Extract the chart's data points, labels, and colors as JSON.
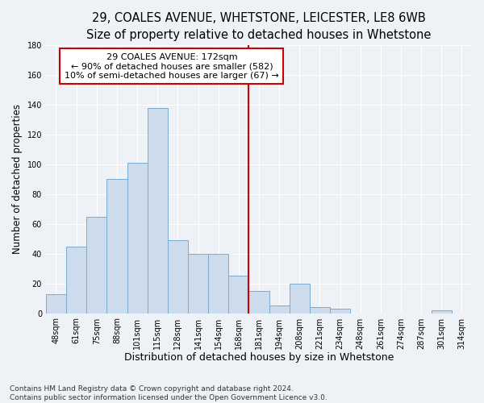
{
  "title": "29, COALES AVENUE, WHETSTONE, LEICESTER, LE8 6WB",
  "subtitle": "Size of property relative to detached houses in Whetstone",
  "xlabel": "Distribution of detached houses by size in Whetstone",
  "ylabel": "Number of detached properties",
  "bar_labels": [
    "48sqm",
    "61sqm",
    "75sqm",
    "88sqm",
    "101sqm",
    "115sqm",
    "128sqm",
    "141sqm",
    "154sqm",
    "168sqm",
    "181sqm",
    "194sqm",
    "208sqm",
    "221sqm",
    "234sqm",
    "248sqm",
    "261sqm",
    "274sqm",
    "287sqm",
    "301sqm",
    "314sqm"
  ],
  "bar_values": [
    13,
    45,
    65,
    90,
    101,
    138,
    49,
    40,
    40,
    25,
    15,
    5,
    20,
    4,
    3,
    0,
    0,
    0,
    0,
    2,
    0
  ],
  "bar_color": "#ccdcec",
  "bar_edge_color": "#7aaacf",
  "annotation_line1": "29 COALES AVENUE: 172sqm",
  "annotation_line2": "← 90% of detached houses are smaller (582)",
  "annotation_line3": "10% of semi-detached houses are larger (67) →",
  "annotation_box_color": "#ffffff",
  "annotation_box_edge_color": "#cc0000",
  "vline_color": "#cc0000",
  "ylim": [
    0,
    180
  ],
  "yticks": [
    0,
    20,
    40,
    60,
    80,
    100,
    120,
    140,
    160,
    180
  ],
  "background_color": "#eef2f7",
  "grid_color": "#ffffff",
  "footer_line1": "Contains HM Land Registry data © Crown copyright and database right 2024.",
  "footer_line2": "Contains public sector information licensed under the Open Government Licence v3.0.",
  "title_fontsize": 10.5,
  "subtitle_fontsize": 9.5,
  "xlabel_fontsize": 9,
  "ylabel_fontsize": 8.5,
  "tick_fontsize": 7,
  "annot_fontsize": 8,
  "footer_fontsize": 6.5
}
